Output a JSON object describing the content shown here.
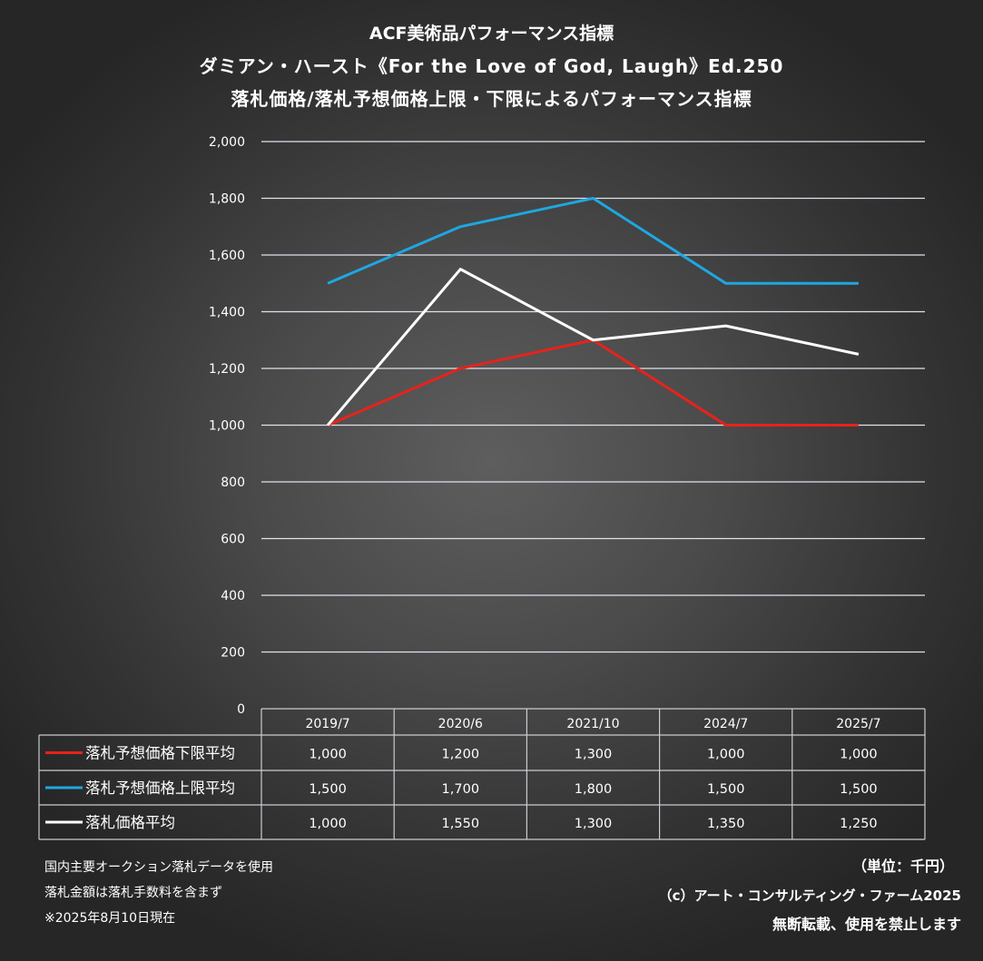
{
  "header": {
    "title1": "ACF美術品パフォーマンス指標",
    "title2": "ダミアン・ハースト《For the Love of God, Laugh》Ed.250",
    "title3": "落札価格/落札予想価格上限・下限によるパフォーマンス指標"
  },
  "chart_data": {
    "type": "line",
    "categories": [
      "2019/7",
      "2020/6",
      "2021/10",
      "2024/7",
      "2025/7"
    ],
    "series": [
      {
        "name": "落札予想価格下限平均",
        "color": "#e8221b",
        "values": [
          1000,
          1200,
          1300,
          1000,
          1000
        ],
        "labels": [
          "1,000",
          "1,200",
          "1,300",
          "1,000",
          "1,000"
        ]
      },
      {
        "name": "落札予想価格上限平均",
        "color": "#1ea7e1",
        "values": [
          1500,
          1700,
          1800,
          1500,
          1500
        ],
        "labels": [
          "1,500",
          "1,700",
          "1,800",
          "1,500",
          "1,500"
        ]
      },
      {
        "name": "落札価格平均",
        "color": "#ffffff",
        "values": [
          1000,
          1550,
          1300,
          1350,
          1250
        ],
        "labels": [
          "1,000",
          "1,550",
          "1,300",
          "1,350",
          "1,250"
        ]
      }
    ],
    "ylim": [
      0,
      2000
    ],
    "yticks": [
      0,
      200,
      400,
      600,
      800,
      1000,
      1200,
      1400,
      1600,
      1800,
      2000
    ],
    "ytick_labels": [
      "0",
      "200",
      "400",
      "600",
      "800",
      "1,000",
      "1,200",
      "1,400",
      "1,600",
      "1,800",
      "2,000"
    ],
    "grid": true,
    "legend": "data-table-bottom"
  },
  "footer": {
    "note1": "国内主要オークション落札データを使用",
    "note2": "落札金額は落札手数料を含まず",
    "note3": "※2025年8月10日現在",
    "unit": "（単位：千円）",
    "copyright": "（c）アート・コンサルティング・ファーム2025",
    "rights": "無断転載、使用を禁止します"
  }
}
